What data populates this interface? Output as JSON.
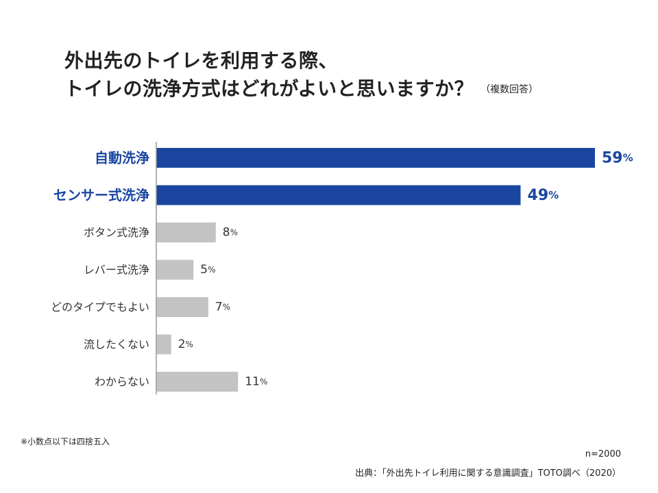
{
  "title_line1": "外出先のトイレを利用する際、",
  "title_line2": "トイレの洗浄方式はどれがよいと思いますか？",
  "title_note": "（複数回答）",
  "chart_data": {
    "type": "bar",
    "orientation": "horizontal",
    "categories": [
      "自動洗浄",
      "センサー式洗浄",
      "ボタン式洗浄",
      "レバー式洗浄",
      "どのタイプでもよい",
      "流したくない",
      "わからない"
    ],
    "values": [
      59,
      49,
      8,
      5,
      7,
      2,
      11
    ],
    "unit": "%",
    "highlight_count": 2,
    "colors": {
      "highlight": "#1a46a0",
      "normal": "#c3c3c3",
      "axis": "#999999"
    }
  },
  "footnote": "※小数点以下は四捨五入",
  "sample_size": "n=2000",
  "source": "出典：「外出先トイレ利用に関する意識調査」TOTO調べ（2020）"
}
